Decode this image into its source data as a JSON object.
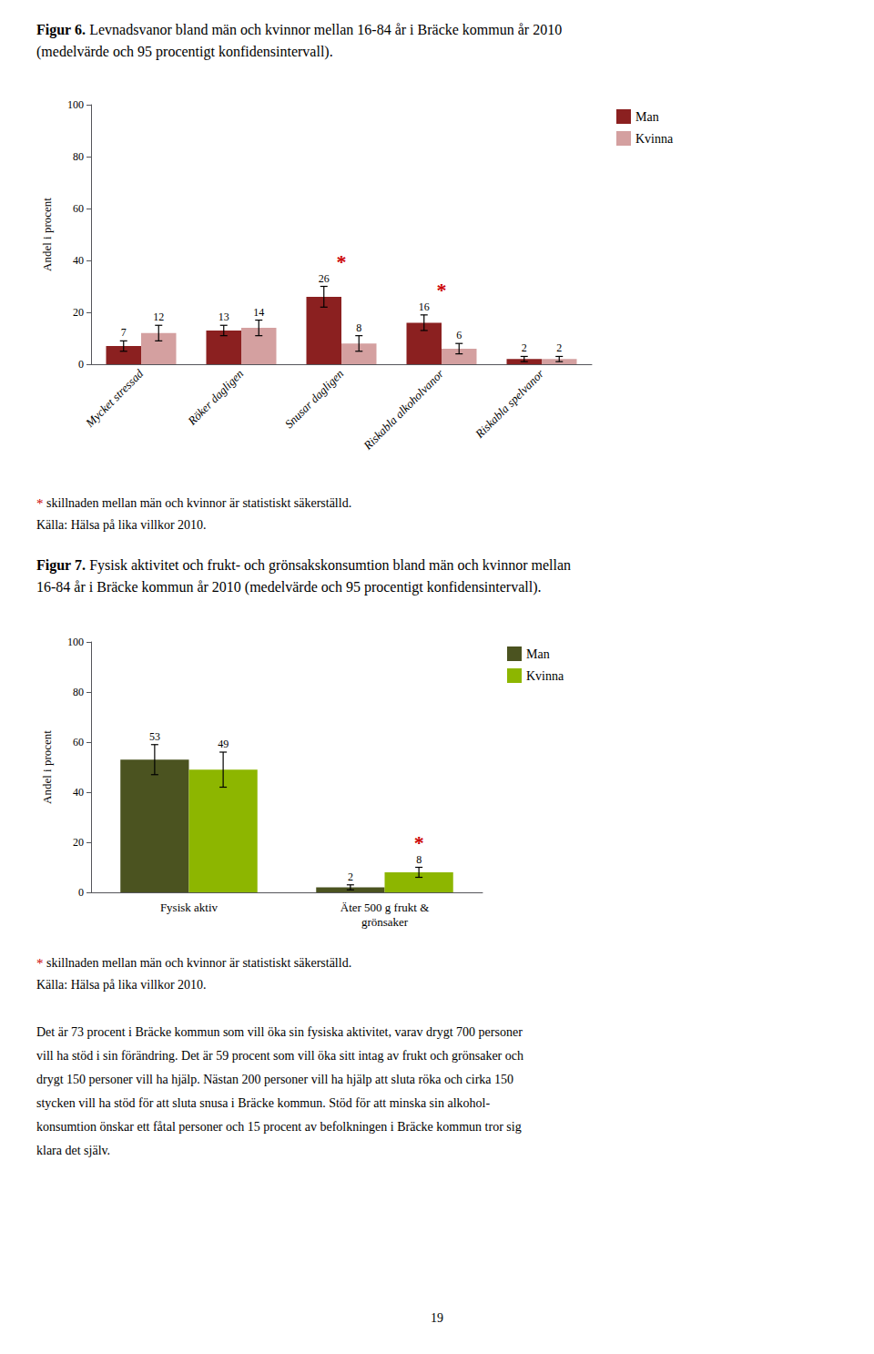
{
  "chart_data": [
    {
      "type": "bar",
      "title": "Figur 6. Levnadsvanor bland män och kvinnor mellan 16-84 år i Bräcke kommun år 2010\n(medelvärde och 95 procentigt konfidensintervall).",
      "categories": [
        "Mycket stressad",
        "Röker dagligen",
        "Snusar dagligen",
        "Riskabla alkoholvanor",
        "Riskabla spelvanor"
      ],
      "series": [
        {
          "name": "Man",
          "color": "#8B2020",
          "values": [
            7,
            13,
            26,
            16,
            2
          ],
          "errors": [
            2,
            2,
            4,
            3,
            1
          ]
        },
        {
          "name": "Kvinna",
          "color": "#D4A0A0",
          "values": [
            12,
            14,
            8,
            6,
            2
          ],
          "errors": [
            3,
            3,
            3,
            2,
            1
          ]
        }
      ],
      "ylabel": "Andel i procent",
      "ylim": [
        0,
        100
      ],
      "yticks": [
        0,
        20,
        40,
        60,
        80,
        100
      ],
      "grid": false,
      "legend": "right",
      "data_labels": true,
      "annotations": [
        {
          "text": "*",
          "category": "Snusar dagligen",
          "color": "#CC0000"
        },
        {
          "text": "*",
          "category": "Riskabla alkoholvanor",
          "color": "#CC0000"
        },
        {
          "text": "* skillnaden mellan män och kvinnor är statistiskt säkerställd."
        },
        {
          "text": "Källa: Hälsa på lika villkor 2010."
        }
      ]
    },
    {
      "type": "bar",
      "title": "Figur 7. Fysisk aktivitet och frukt- och grönsakskonsumtion bland män och kvinnor mellan\n16-84 år i Bräcke kommun år 2010 (medelvärde och 95 procentigt konfidensintervall).",
      "categories": [
        "Fysisk aktiv",
        "Äter 500 g frukt &\ngrönsaker"
      ],
      "series": [
        {
          "name": "Man",
          "color": "#4B5320",
          "values": [
            53,
            2
          ],
          "errors": [
            6,
            1
          ]
        },
        {
          "name": "Kvinna",
          "color": "#8DB600",
          "values": [
            49,
            8
          ],
          "errors": [
            7,
            2
          ]
        }
      ],
      "ylabel": "Andel i procent",
      "ylim": [
        0,
        100
      ],
      "yticks": [
        0,
        20,
        40,
        60,
        80,
        100
      ],
      "grid": false,
      "legend": "right",
      "data_labels": true,
      "annotations": [
        {
          "text": "*",
          "category": "Äter 500 g frukt &\ngrönsaker",
          "series": "Kvinna",
          "color": "#CC0000"
        },
        {
          "text": "* skillnaden mellan män och kvinnor är statistiskt säkerställd."
        },
        {
          "text": "Källa: Hälsa på lika villkor 2010."
        }
      ]
    }
  ],
  "annotations": [
    {
      "text": "Det är 73 procent i Bräcke kommun som vill öka sin fysiska aktivitet, varav drygt 700 personer\nvill ha stöd i sin förändring. Det är 59 procent som vill öka sitt intag av frukt och grönsaker och\ndrygt 150 personer vill ha hjälp. Nästan 200 personer vill ha hjälp att sluta röka och cirka 150\nstycken vill ha stöd för att sluta snusa i Bräcke kommun. Stöd för att minska sin alkohol-\nkonsumtion önskar ett fåtal personer och 15 procent av befolkningen i Bräcke kommun tror sig\nklara det själv."
    },
    {
      "text": "19"
    }
  ]
}
